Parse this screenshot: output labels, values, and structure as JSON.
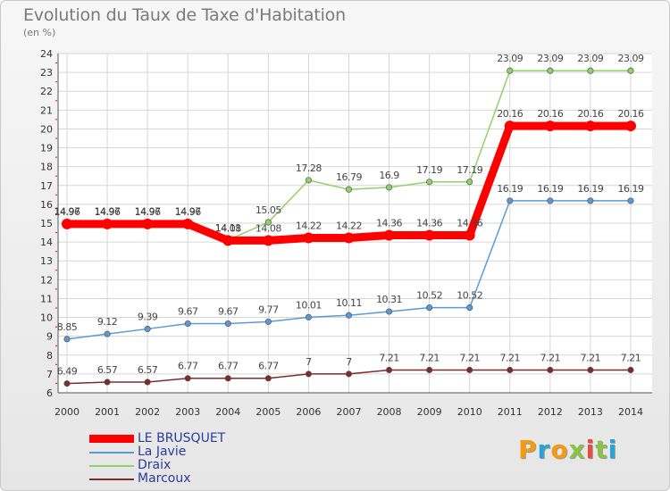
{
  "header": {
    "title": "Evolution du Taux de Taxe d'Habitation",
    "subtitle": "(en %)"
  },
  "logo": {
    "letters": [
      "P",
      "r",
      "o",
      "x",
      "i",
      "t",
      "i"
    ],
    "colors": [
      "#f39c12",
      "#27a5d8",
      "#f39c12",
      "#8bc34a",
      "#e74c3c",
      "#8bc34a",
      "#27a5d8"
    ]
  },
  "chart_data": {
    "type": "line",
    "title": "Evolution du Taux de Taxe d'Habitation",
    "subtitle": "(en %)",
    "xlabel": "",
    "ylabel": "",
    "x": [
      "2000",
      "2001",
      "2002",
      "2003",
      "2004",
      "2005",
      "2006",
      "2007",
      "2008",
      "2009",
      "2010",
      "2011",
      "2012",
      "2013",
      "2014"
    ],
    "ylim": [
      6,
      24
    ],
    "yticks": [
      6,
      7,
      8,
      9,
      10,
      11,
      12,
      13,
      14,
      15,
      16,
      17,
      18,
      19,
      20,
      21,
      22,
      23,
      24
    ],
    "grid": true,
    "legend_position": "bottom-left",
    "series": [
      {
        "name": "LE BRUSQUET",
        "color": "#ff0000",
        "values": [
          14.96,
          14.96,
          14.96,
          14.96,
          14.08,
          14.08,
          14.22,
          14.22,
          14.36,
          14.36,
          14.36,
          20.16,
          20.16,
          20.16,
          20.16
        ],
        "labels": [
          "14.96",
          "14.96",
          "14.96",
          "14.96",
          "14.08",
          "14.08",
          "14.22",
          "14.22",
          "14.36",
          "14.36",
          "14.36",
          "20.16",
          "20.16",
          "20.16",
          "20.16"
        ]
      },
      {
        "name": "La Javie",
        "color": "#5b9bd5",
        "values": [
          8.85,
          9.12,
          9.39,
          9.67,
          9.67,
          9.77,
          10.01,
          10.11,
          10.31,
          10.52,
          10.52,
          16.19,
          16.19,
          16.19,
          16.19
        ],
        "labels": [
          "8.85",
          "9.12",
          "9.39",
          "9.67",
          "9.67",
          "9.77",
          "10.01",
          "10.11",
          "10.31",
          "10.52",
          "10.52",
          "16.19",
          "16.19",
          "16.19",
          "16.19"
        ]
      },
      {
        "name": "Draix",
        "color": "#8fd16a",
        "values": [
          14.97,
          14.97,
          14.97,
          14.97,
          14.11,
          15.05,
          17.28,
          16.79,
          16.9,
          17.19,
          17.19,
          23.09,
          23.09,
          23.09,
          23.09
        ],
        "labels": [
          "14.97",
          "14.97",
          "14.97",
          "14.97",
          "14.11",
          "15.05",
          "17.28",
          "16.79",
          "16.9",
          "17.19",
          "17.19",
          "23.09",
          "23.09",
          "23.09",
          "23.09"
        ]
      },
      {
        "name": "Marcoux",
        "color": "#7b2d2d",
        "values": [
          6.49,
          6.57,
          6.57,
          6.77,
          6.77,
          6.77,
          7,
          7,
          7.21,
          7.21,
          7.21,
          7.21,
          7.21,
          7.21,
          7.21
        ],
        "labels": [
          "6.49",
          "6.57",
          "6.57",
          "6.77",
          "6.77",
          "6.77",
          "7",
          "7",
          "7.21",
          "7.21",
          "7.21",
          "7.21",
          "7.21",
          "7.21",
          "7.21"
        ]
      }
    ]
  }
}
